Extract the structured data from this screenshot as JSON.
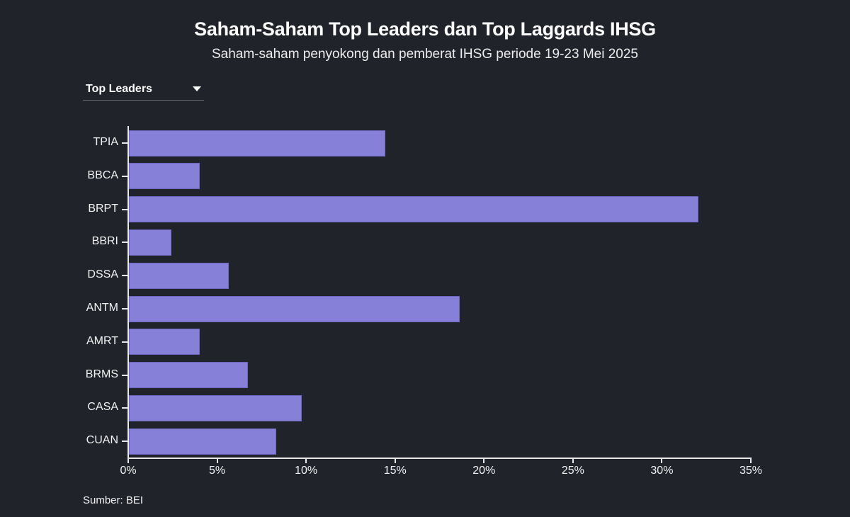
{
  "header": {
    "title": "Saham-Saham Top Leaders dan Top Laggards IHSG",
    "subtitle": "Saham-saham penyokong dan pemberat IHSG periode 19-23 Mei 2025"
  },
  "dropdown": {
    "selected": "Top Leaders",
    "icon": "caret-down-icon"
  },
  "footer": {
    "source": "Sumber: BEI"
  },
  "colors": {
    "background": "#21232b",
    "bar": "#8780d8",
    "text": "#ffffff"
  },
  "chart_data": {
    "type": "bar",
    "orientation": "horizontal",
    "title": "Saham-Saham Top Leaders dan Top Laggards IHSG",
    "subtitle": "Saham-saham penyokong dan pemberat IHSG periode 19-23 Mei 2025",
    "xlabel": "",
    "ylabel": "",
    "categories": [
      "TPIA",
      "BBCA",
      "BRPT",
      "BBRI",
      "DSSA",
      "ANTM",
      "AMRT",
      "BRMS",
      "CASA",
      "CUAN"
    ],
    "values": [
      14.4,
      4.0,
      32.0,
      2.4,
      5.6,
      18.6,
      4.0,
      6.7,
      9.7,
      8.3
    ],
    "unit": "%",
    "xlim": [
      0,
      35
    ],
    "xticks": [
      "0%",
      "5%",
      "10%",
      "15%",
      "20%",
      "25%",
      "30%",
      "35%"
    ],
    "grid": false,
    "legend": null,
    "source": "Sumber: BEI"
  }
}
